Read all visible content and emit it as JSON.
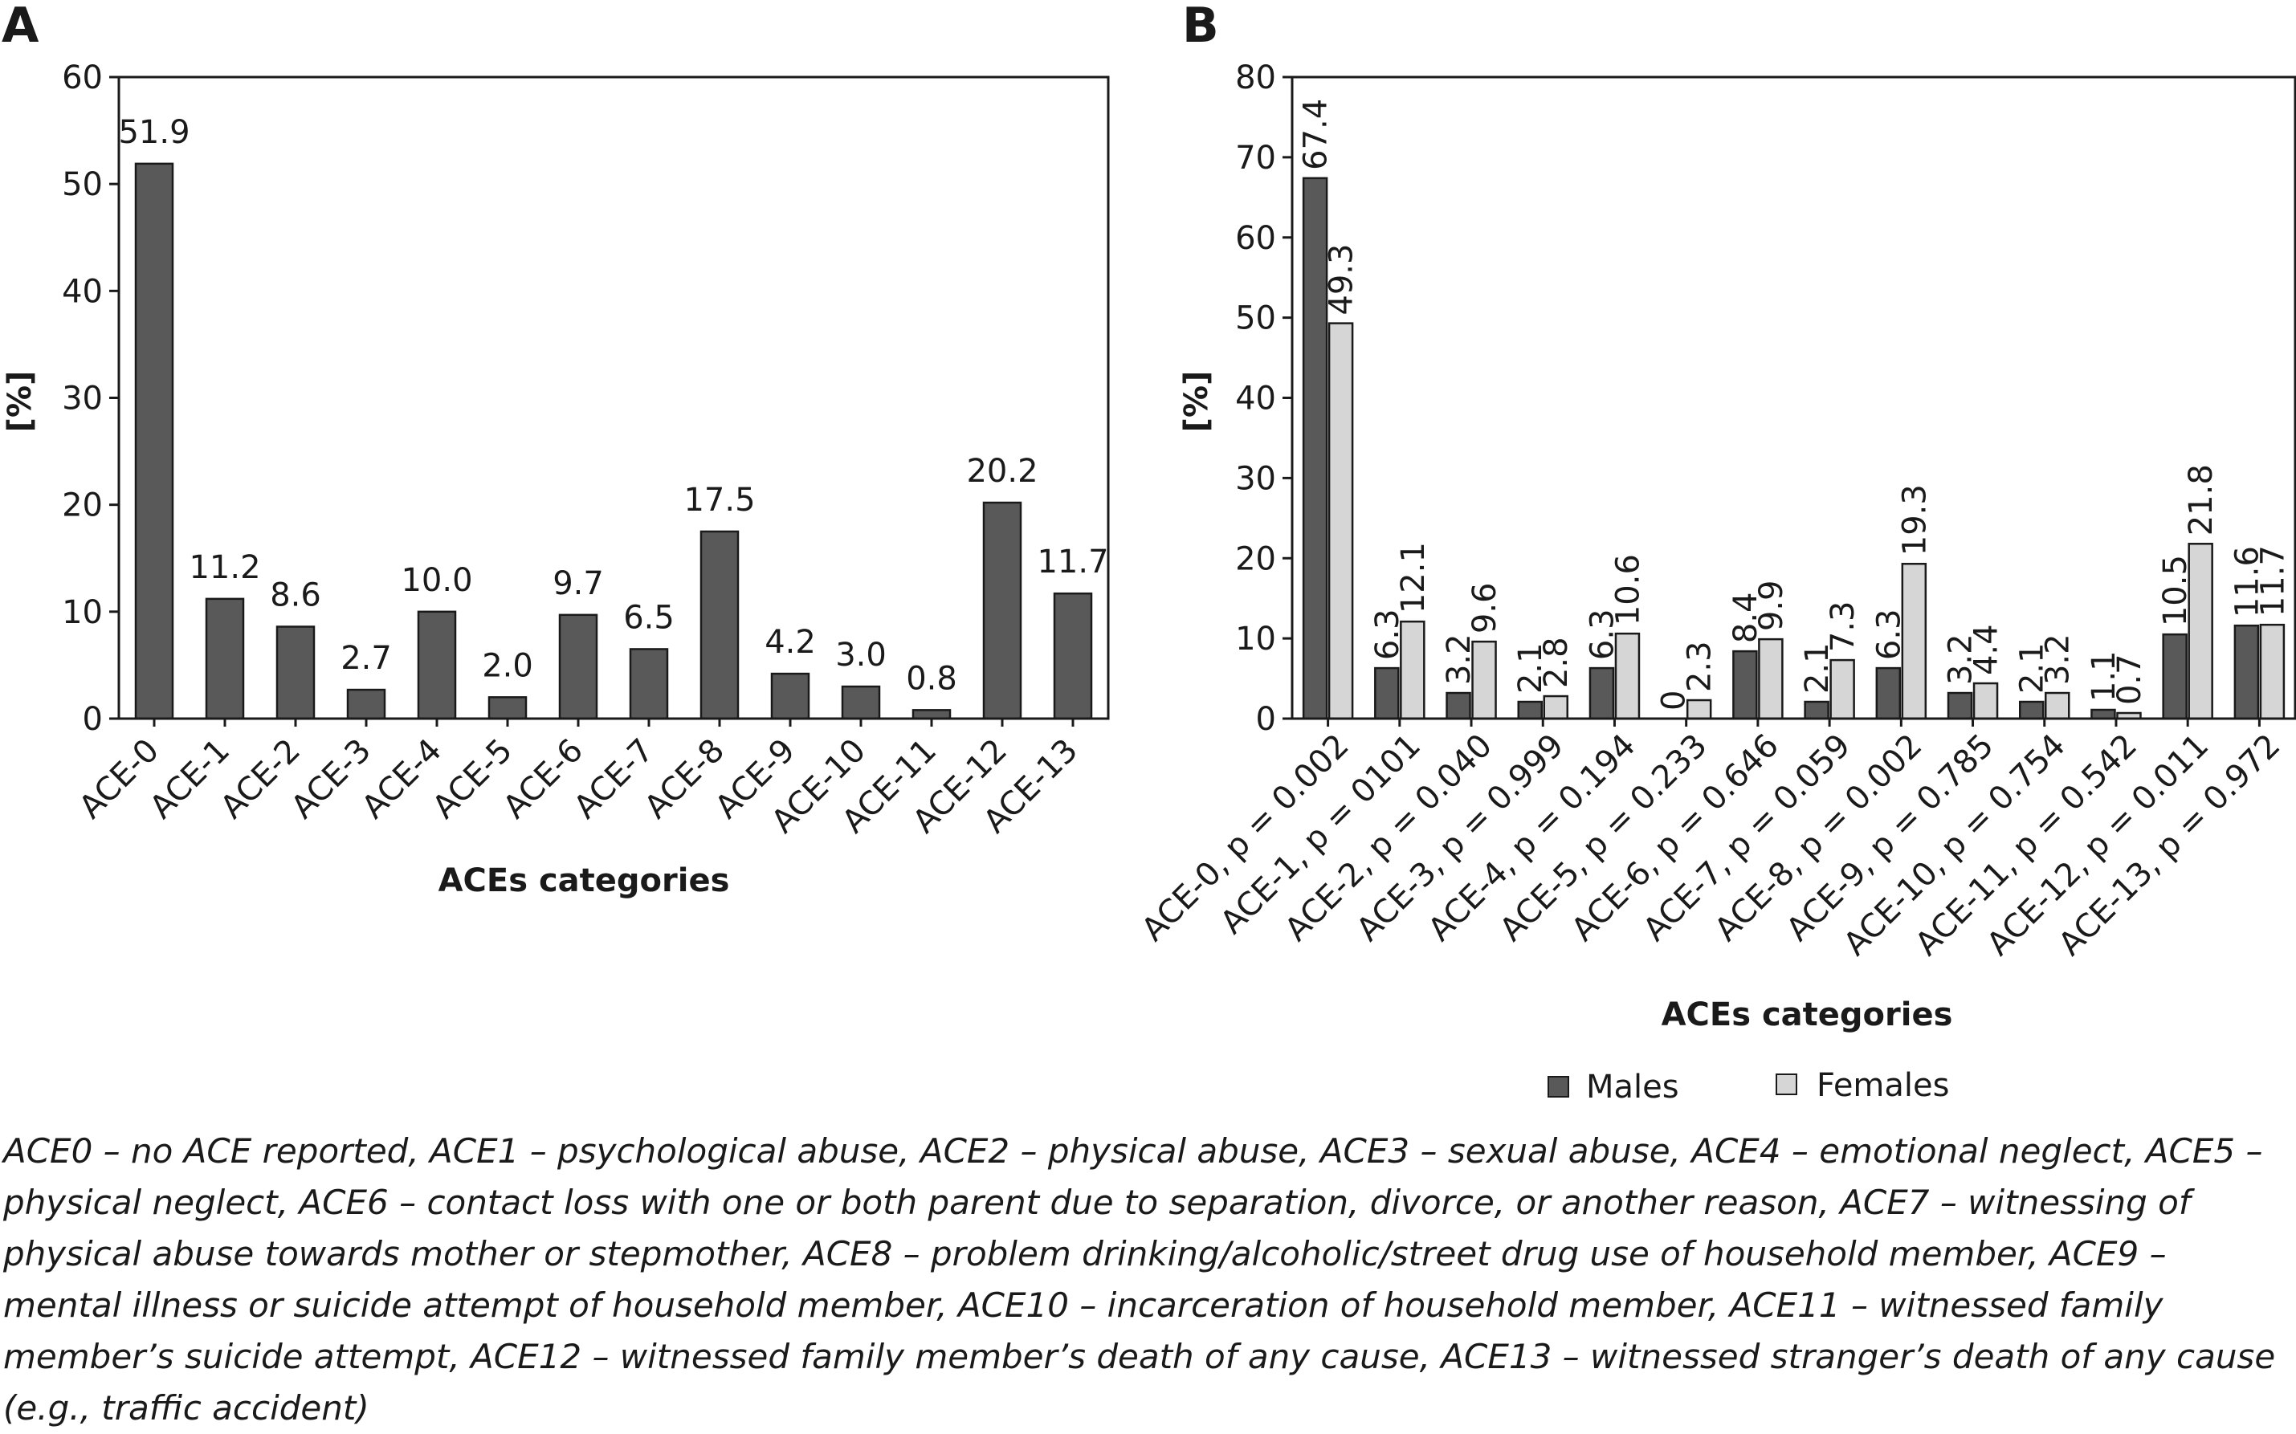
{
  "chart_data": [
    {
      "panel_label": "A",
      "type": "bar",
      "xlabel": "ACEs categories",
      "ylabel": "[%]",
      "ylim": [
        0,
        60
      ],
      "yticks": [
        "0",
        "10",
        "20",
        "30",
        "40",
        "50",
        "60"
      ],
      "categories": [
        "ACE-0",
        "ACE-1",
        "ACE-2",
        "ACE-3",
        "ACE-4",
        "ACE-5",
        "ACE-6",
        "ACE-7",
        "ACE-8",
        "ACE-9",
        "ACE-10",
        "ACE-11",
        "ACE-12",
        "ACE-13"
      ],
      "values": [
        51.9,
        11.2,
        8.6,
        2.7,
        10.0,
        2.0,
        9.7,
        6.5,
        17.5,
        4.2,
        3.0,
        0.8,
        20.2,
        11.7
      ],
      "value_labels": [
        "51.9",
        "11.2",
        "8.6",
        "2.7",
        "10.0",
        "2.0",
        "9.7",
        "6.5",
        "17.5",
        "4.2",
        "3.0",
        "0.8",
        "20.2",
        "11.7"
      ],
      "color": "#595959",
      "grid": false
    },
    {
      "panel_label": "B",
      "type": "bar",
      "xlabel": "ACEs categories",
      "ylabel": "[%]",
      "ylim": [
        0,
        80
      ],
      "yticks": [
        "0",
        "10",
        "20",
        "30",
        "40",
        "50",
        "60",
        "70",
        "80"
      ],
      "categories": [
        "ACE-0, p = 0.002",
        "ACE-1, p = 0101",
        "ACE-2, p = 0.040",
        "ACE-3, p = 0.999",
        "ACE-4, p = 0.194",
        "ACE-5, p = 0.233",
        "ACE-6, p = 0.646",
        "ACE-7, p = 0.059",
        "ACE-8, p = 0.002",
        "ACE-9, p = 0.785",
        "ACE-10, p = 0.754",
        "ACE-11, p = 0.542",
        "ACE-12, p = 0.011",
        "ACE-13, p = 0.972"
      ],
      "series": [
        {
          "name": "Males",
          "color": "#595959",
          "values": [
            67.4,
            6.3,
            3.2,
            2.1,
            6.3,
            0,
            8.4,
            2.1,
            6.3,
            3.2,
            2.1,
            1.1,
            10.5,
            11.6
          ],
          "value_labels": [
            "67.4",
            "6.3",
            "3.2",
            "2.1",
            "6.3",
            "0",
            "8.4",
            "2.1",
            "6.3",
            "3.2",
            "2.1",
            "1.1",
            "10.5",
            "11.6"
          ]
        },
        {
          "name": "Females",
          "color": "#d6d6d6",
          "values": [
            49.3,
            12.1,
            9.6,
            2.8,
            10.6,
            2.3,
            9.9,
            7.3,
            19.3,
            4.4,
            3.2,
            0.7,
            21.8,
            11.7
          ],
          "value_labels": [
            "49.3",
            "12.1",
            "9.6",
            "2.8",
            "10.6",
            "2.3",
            "9.9",
            "7.3",
            "19.3",
            "4.4",
            "3.2",
            "0.7",
            "21.8",
            "11.7"
          ]
        }
      ],
      "legend_position": "bottom-center",
      "grid": false
    }
  ],
  "caption": "ACE0 – no ACE reported, ACE1 – psychological abuse, ACE2 – physical abuse, ACE3 – sexual abuse, ACE4 – emotional neglect, ACE5 – physical neglect, ACE6 – contact loss with one or both parent due to separation, divorce, or another reason, ACE7 – witnessing of physical abuse towards mother or stepmother, ACE8 – problem drinking/alcoholic/street drug use of household member, ACE9 – mental illness or suicide attempt of household member, ACE10 – incarceration of household member, ACE11 – witnessed family member’s suicide attempt, ACE12 – witnessed family member’s death of any cause, ACE13 – witnessed stranger’s death of any cause (e.g., traffic accident)"
}
